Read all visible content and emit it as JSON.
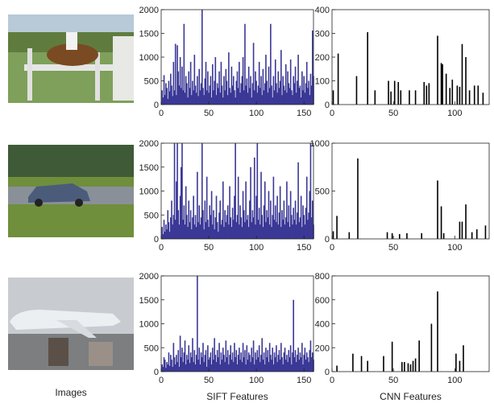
{
  "image_column_label": "Images",
  "chart_data": [
    {
      "type": "bar",
      "color": "#3b3896",
      "xlim": [
        0,
        160
      ],
      "ylim": [
        0,
        2000
      ],
      "xticks": [
        0,
        50,
        100,
        150
      ],
      "yticks": [
        0,
        500,
        1000,
        1500,
        2000
      ],
      "x": [
        1,
        2,
        3,
        4,
        5,
        6,
        7,
        8,
        9,
        10,
        11,
        12,
        13,
        14,
        15,
        16,
        17,
        18,
        19,
        20,
        21,
        22,
        23,
        24,
        25,
        26,
        27,
        28,
        29,
        30,
        31,
        32,
        33,
        34,
        35,
        36,
        37,
        38,
        39,
        40,
        41,
        42,
        43,
        44,
        45,
        46,
        47,
        48,
        49,
        50,
        51,
        52,
        53,
        54,
        55,
        56,
        57,
        58,
        59,
        60,
        61,
        62,
        63,
        64,
        65,
        66,
        67,
        68,
        69,
        70,
        71,
        72,
        73,
        74,
        75,
        76,
        77,
        78,
        79,
        80,
        81,
        82,
        83,
        84,
        85,
        86,
        87,
        88,
        89,
        90,
        91,
        92,
        93,
        94,
        95,
        96,
        97,
        98,
        99,
        100,
        101,
        102,
        103,
        104,
        105,
        106,
        107,
        108,
        109,
        110,
        111,
        112,
        113,
        114,
        115,
        116,
        117,
        118,
        119,
        120,
        121,
        122,
        123,
        124,
        125,
        126,
        127,
        128,
        129,
        130,
        131,
        132,
        133,
        134,
        135,
        136,
        137,
        138,
        139,
        140,
        141,
        142,
        143,
        144,
        145,
        146,
        147,
        148,
        149,
        150,
        151,
        152,
        153,
        154,
        155,
        156,
        157,
        158,
        159,
        160
      ],
      "values": [
        300,
        150,
        620,
        200,
        450,
        350,
        120,
        500,
        280,
        650,
        400,
        180,
        900,
        300,
        1280,
        200,
        1250,
        700,
        400,
        1000,
        350,
        800,
        300,
        1700,
        250,
        600,
        450,
        150,
        700,
        350,
        900,
        200,
        500,
        300,
        1050,
        400,
        250,
        600,
        180,
        750,
        300,
        450,
        2000,
        350,
        200,
        550,
        900,
        300,
        700,
        250,
        400,
        600,
        150,
        850,
        300,
        500,
        1000,
        200,
        450,
        350,
        700,
        250,
        900,
        400,
        150,
        600,
        300,
        750,
        500,
        200,
        1100,
        350,
        250,
        800,
        400,
        600,
        300,
        150,
        500,
        700,
        350,
        900,
        250,
        450,
        600,
        1000,
        300,
        1700,
        400,
        550,
        250,
        800,
        350,
        600,
        150,
        450,
        1300,
        300,
        700,
        500,
        250,
        400,
        900,
        350,
        600,
        200,
        750,
        300,
        450,
        1050,
        500,
        250,
        800,
        350,
        1700,
        400,
        150,
        600,
        300,
        950,
        450,
        250,
        700,
        350,
        500,
        1150,
        200,
        600,
        400,
        300,
        850,
        250,
        700,
        450,
        350,
        950,
        300,
        200,
        600,
        450,
        800,
        250,
        500,
        1050,
        350,
        400,
        150,
        700,
        300,
        600,
        250,
        450,
        900,
        350,
        500,
        200,
        650,
        400,
        1560,
        600
      ]
    },
    {
      "type": "bar",
      "color": "#000000",
      "xlim": [
        0,
        128
      ],
      "ylim": [
        0,
        400
      ],
      "xticks": [
        0,
        50,
        100
      ],
      "yticks": [
        0,
        100,
        200,
        300,
        400
      ],
      "x": [
        1,
        5,
        20,
        29,
        35,
        46,
        48,
        51,
        54,
        56,
        63,
        68,
        75,
        77,
        79,
        86,
        89,
        90,
        93,
        96,
        98,
        102,
        104,
        106,
        109,
        112,
        116,
        119,
        123
      ],
      "values": [
        60,
        215,
        120,
        305,
        60,
        100,
        55,
        100,
        95,
        60,
        60,
        60,
        95,
        80,
        90,
        290,
        175,
        170,
        130,
        70,
        105,
        80,
        75,
        255,
        200,
        60,
        80,
        80,
        50
      ]
    },
    {
      "type": "bar",
      "color": "#3b3896",
      "xlim": [
        0,
        160
      ],
      "ylim": [
        0,
        2000
      ],
      "xticks": [
        0,
        50,
        100,
        150
      ],
      "yticks": [
        0,
        500,
        1000,
        1500,
        2000
      ],
      "x": [
        1,
        2,
        3,
        4,
        5,
        6,
        7,
        8,
        9,
        10,
        11,
        12,
        13,
        14,
        15,
        16,
        17,
        18,
        19,
        20,
        21,
        22,
        23,
        24,
        25,
        26,
        27,
        28,
        29,
        30,
        31,
        32,
        33,
        34,
        35,
        36,
        37,
        38,
        39,
        40,
        41,
        42,
        43,
        44,
        45,
        46,
        47,
        48,
        49,
        50,
        51,
        52,
        53,
        54,
        55,
        56,
        57,
        58,
        59,
        60,
        61,
        62,
        63,
        64,
        65,
        66,
        67,
        68,
        69,
        70,
        71,
        72,
        73,
        74,
        75,
        76,
        77,
        78,
        79,
        80,
        81,
        82,
        83,
        84,
        85,
        86,
        87,
        88,
        89,
        90,
        91,
        92,
        93,
        94,
        95,
        96,
        97,
        98,
        99,
        100,
        101,
        102,
        103,
        104,
        105,
        106,
        107,
        108,
        109,
        110,
        111,
        112,
        113,
        114,
        115,
        116,
        117,
        118,
        119,
        120,
        121,
        122,
        123,
        124,
        125,
        126,
        127,
        128,
        129,
        130,
        131,
        132,
        133,
        134,
        135,
        136,
        137,
        138,
        139,
        140,
        141,
        142,
        143,
        144,
        145,
        146,
        147,
        148,
        149,
        150,
        151,
        152,
        153,
        154,
        155,
        156,
        157,
        158,
        159,
        160
      ],
      "values": [
        250,
        100,
        400,
        150,
        300,
        200,
        600,
        350,
        150,
        450,
        800,
        300,
        500,
        2000,
        400,
        1200,
        2000,
        600,
        300,
        900,
        1500,
        2000,
        400,
        700,
        300,
        1100,
        500,
        250,
        800,
        350,
        600,
        200,
        450,
        900,
        300,
        500,
        250,
        1400,
        350,
        700,
        300,
        450,
        2000,
        600,
        200,
        800,
        350,
        1300,
        400,
        250,
        700,
        500,
        1000,
        300,
        600,
        200,
        450,
        900,
        350,
        150,
        550,
        800,
        300,
        400,
        1200,
        250,
        600,
        350,
        500,
        700,
        300,
        1100,
        450,
        250,
        650,
        400,
        900,
        2000,
        350,
        500,
        1300,
        300,
        700,
        450,
        250,
        1000,
        600,
        350,
        1200,
        400,
        500,
        250,
        800,
        1500,
        350,
        600,
        450,
        1700,
        300,
        900,
        2000,
        400,
        650,
        300,
        1400,
        500,
        250,
        700,
        1200,
        350,
        600,
        450,
        1000,
        300,
        800,
        250,
        500,
        1300,
        400,
        700,
        350,
        900,
        300,
        550,
        1100,
        250,
        600,
        400,
        800,
        300,
        450,
        1200,
        350,
        700,
        250,
        1000,
        500,
        300,
        650,
        400,
        800,
        300,
        550,
        1600,
        350,
        450,
        900,
        250,
        700,
        500,
        300,
        650,
        1300,
        400,
        550,
        1000,
        2000,
        450,
        800,
        300
      ]
    },
    {
      "type": "bar",
      "color": "#000000",
      "xlim": [
        0,
        128
      ],
      "ylim": [
        0,
        1000
      ],
      "xticks": [
        0,
        50,
        100
      ],
      "yticks": [
        0,
        500,
        1000
      ],
      "x": [
        1,
        4,
        14,
        21,
        45,
        49,
        55,
        61,
        73,
        86,
        89,
        91,
        104,
        106,
        109,
        114,
        118,
        125
      ],
      "values": [
        80,
        240,
        70,
        840,
        70,
        60,
        50,
        60,
        60,
        610,
        340,
        60,
        180,
        180,
        360,
        70,
        100,
        140
      ]
    },
    {
      "type": "bar",
      "color": "#3b3896",
      "xlim": [
        0,
        160
      ],
      "ylim": [
        0,
        2000
      ],
      "xticks": [
        0,
        50,
        100,
        150
      ],
      "yticks": [
        0,
        500,
        1000,
        1500,
        2000
      ],
      "xlabel": "SIFT Features",
      "x": [
        1,
        2,
        3,
        4,
        5,
        6,
        7,
        8,
        9,
        10,
        11,
        12,
        13,
        14,
        15,
        16,
        17,
        18,
        19,
        20,
        21,
        22,
        23,
        24,
        25,
        26,
        27,
        28,
        29,
        30,
        31,
        32,
        33,
        34,
        35,
        36,
        37,
        38,
        39,
        40,
        41,
        42,
        43,
        44,
        45,
        46,
        47,
        48,
        49,
        50,
        51,
        52,
        53,
        54,
        55,
        56,
        57,
        58,
        59,
        60,
        61,
        62,
        63,
        64,
        65,
        66,
        67,
        68,
        69,
        70,
        71,
        72,
        73,
        74,
        75,
        76,
        77,
        78,
        79,
        80,
        81,
        82,
        83,
        84,
        85,
        86,
        87,
        88,
        89,
        90,
        91,
        92,
        93,
        94,
        95,
        96,
        97,
        98,
        99,
        100,
        101,
        102,
        103,
        104,
        105,
        106,
        107,
        108,
        109,
        110,
        111,
        112,
        113,
        114,
        115,
        116,
        117,
        118,
        119,
        120,
        121,
        122,
        123,
        124,
        125,
        126,
        127,
        128,
        129,
        130,
        131,
        132,
        133,
        134,
        135,
        136,
        137,
        138,
        139,
        140,
        141,
        142,
        143,
        144,
        145,
        146,
        147,
        148,
        149,
        150,
        151,
        152,
        153,
        154,
        155,
        156,
        157,
        158,
        159,
        160
      ],
      "values": [
        150,
        100,
        300,
        250,
        80,
        200,
        150,
        400,
        120,
        350,
        250,
        100,
        600,
        300,
        150,
        350,
        200,
        450,
        100,
        750,
        300,
        500,
        200,
        400,
        650,
        150,
        350,
        250,
        550,
        180,
        400,
        300,
        700,
        200,
        450,
        150,
        350,
        2000,
        250,
        500,
        150,
        400,
        300,
        600,
        200,
        350,
        450,
        100,
        550,
        250,
        300,
        400,
        150,
        500,
        250,
        700,
        350,
        200,
        450,
        300,
        600,
        150,
        400,
        250,
        500,
        350,
        200,
        650,
        300,
        450,
        150,
        350,
        550,
        250,
        400,
        200,
        600,
        300,
        450,
        150,
        350,
        500,
        250,
        400,
        200,
        600,
        300,
        450,
        150,
        550,
        250,
        400,
        350,
        200,
        500,
        300,
        650,
        150,
        400,
        250,
        450,
        300,
        550,
        200,
        350,
        700,
        250,
        400,
        150,
        500,
        300,
        450,
        200,
        600,
        350,
        250,
        500,
        150,
        400,
        300,
        550,
        200,
        350,
        450,
        250,
        600,
        300,
        150,
        400,
        500,
        250,
        350,
        200,
        450,
        300,
        550,
        150,
        400,
        1500,
        300,
        450,
        200,
        350,
        500,
        250,
        400,
        300,
        600,
        150,
        350,
        500,
        250,
        400,
        300,
        200,
        450,
        650,
        300,
        400,
        250
      ]
    },
    {
      "type": "bar",
      "color": "#000000",
      "xlim": [
        0,
        128
      ],
      "ylim": [
        0,
        800
      ],
      "xticks": [
        0,
        50,
        100
      ],
      "yticks": [
        0,
        200,
        400,
        600,
        800
      ],
      "xlabel": "CNN Features",
      "x": [
        4,
        17,
        24,
        29,
        42,
        49,
        57,
        59,
        62,
        64,
        66,
        68,
        71,
        81,
        86,
        101,
        104,
        107
      ],
      "values": [
        50,
        150,
        130,
        90,
        130,
        250,
        80,
        80,
        70,
        60,
        90,
        110,
        260,
        400,
        670,
        150,
        90,
        220
      ]
    }
  ]
}
